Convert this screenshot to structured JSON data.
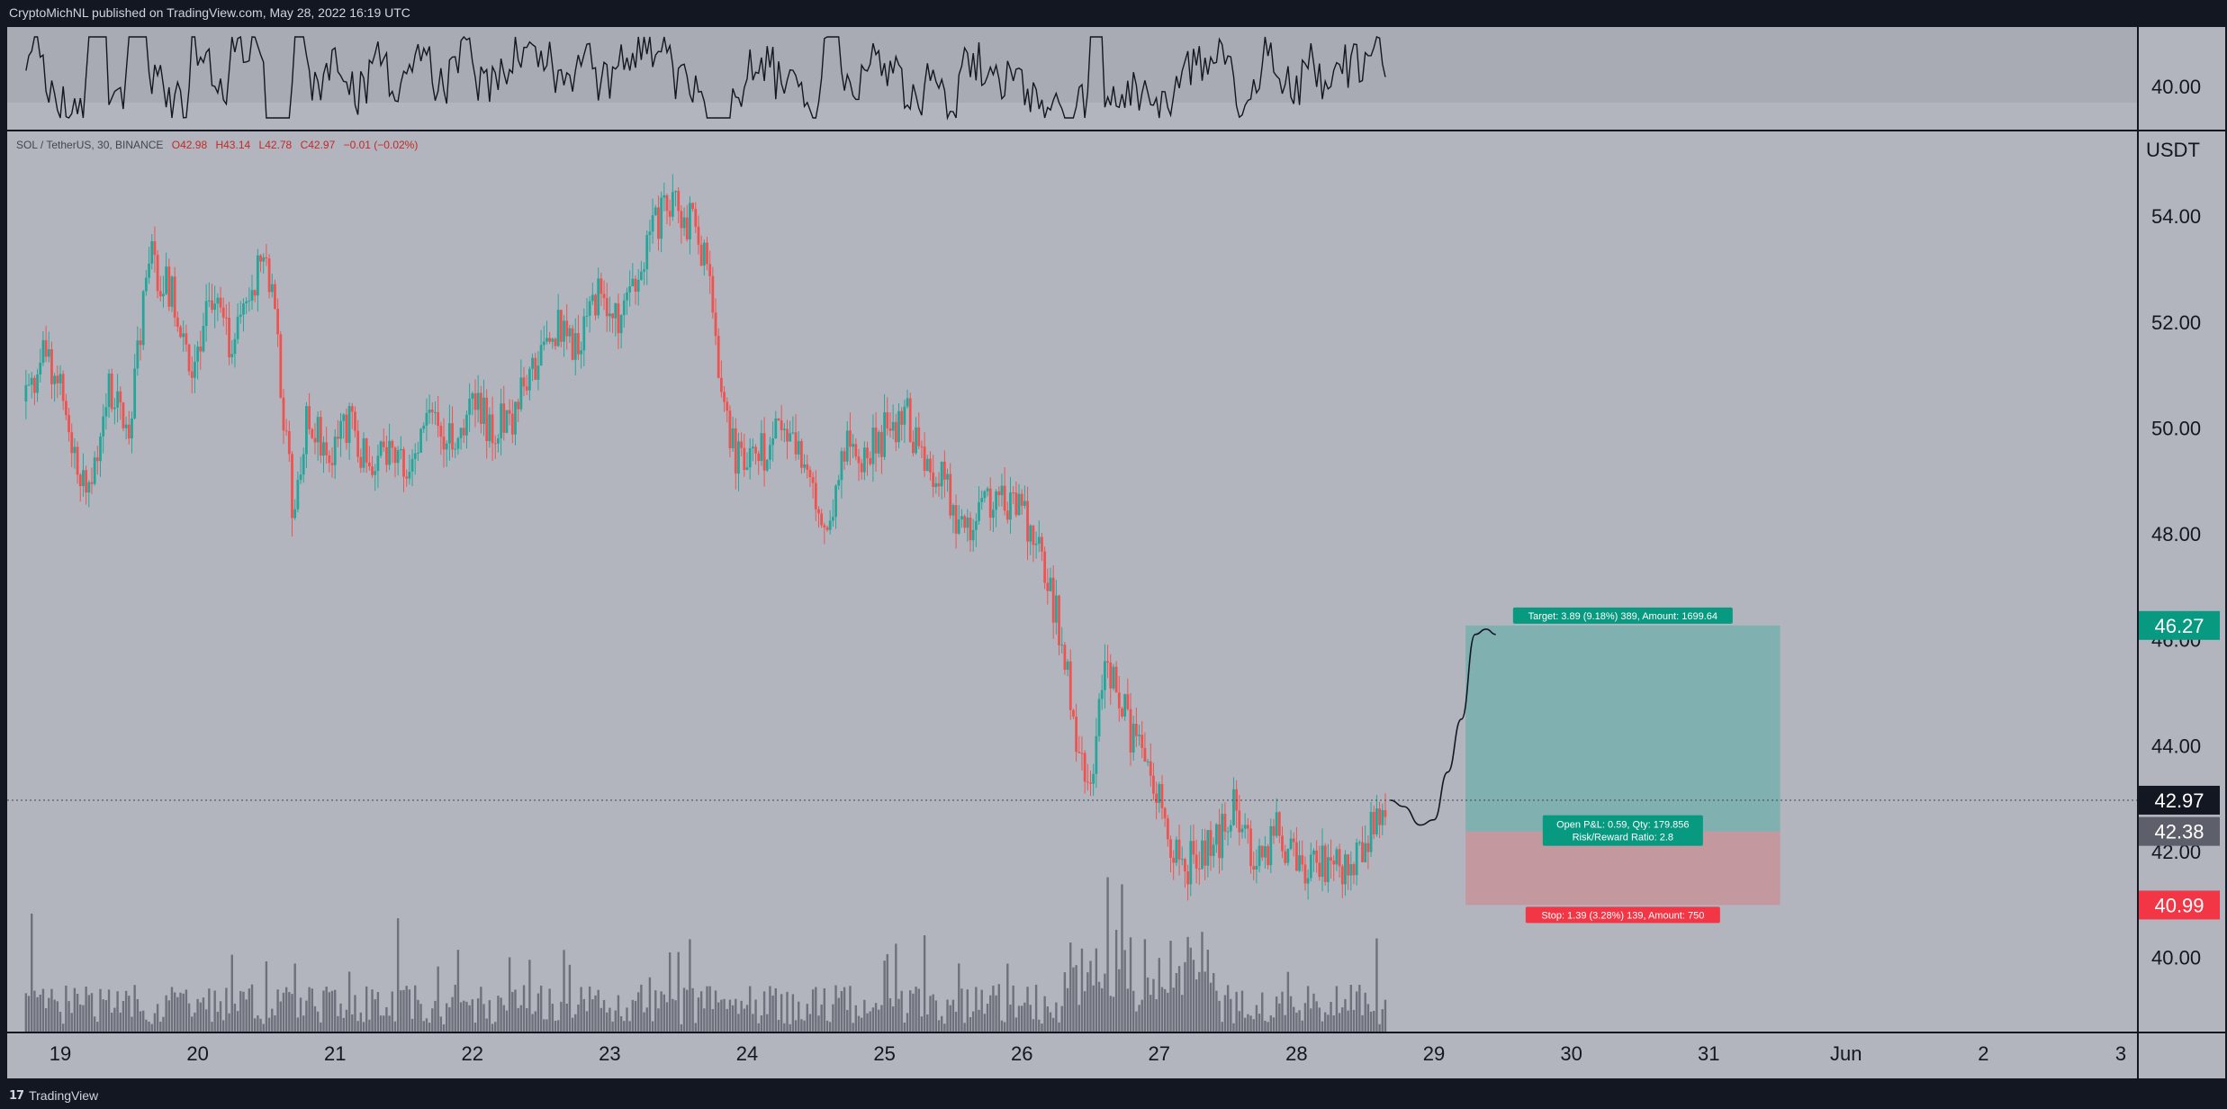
{
  "header": {
    "published": "CryptoMichNL published on TradingView.com, May 28, 2022 16:19 UTC"
  },
  "footer": {
    "logo_mark": "17",
    "logo_text": "TradingView"
  },
  "colors": {
    "background": "#b2b5be",
    "frame": "#131722",
    "up": "#26a69a",
    "down": "#ef5350",
    "target_zone": "#26a69a",
    "stop_zone": "#ef5350",
    "target_label": "#089981",
    "stop_label": "#f23645"
  },
  "chart_data": {
    "type": "candlestick",
    "symbol_line": "SOL / TetherUS, 30, BINANCE",
    "ohlc": {
      "o": "O42.98",
      "h": "H43.14",
      "l": "L42.78",
      "c": "C42.97",
      "chg": "−0.01 (−0.02%)"
    },
    "currency": "USDT",
    "y_ticks": [
      "40.00",
      "42.00",
      "44.00",
      "46.00",
      "48.00",
      "50.00",
      "52.00",
      "54.00"
    ],
    "ylim": [
      38.6,
      55.6
    ],
    "x_ticks": [
      "19",
      "20",
      "21",
      "22",
      "23",
      "24",
      "25",
      "26",
      "27",
      "28",
      "29",
      "30",
      "31",
      "Jun",
      "2",
      "3"
    ],
    "indicator_label": "40.00",
    "last_price": "42.97",
    "entry_price": "42.38",
    "target_price": "46.27",
    "stop_price": "40.99",
    "target_text": "Target: 3.89 (9.18%) 389, Amount: 1699.64",
    "stop_text": "Stop: 1.39 (3.28%) 139, Amount: 750",
    "pnl_text": "Open P&L: 0.59, Qty: 179.856",
    "rr_text": "Risk/Reward Ratio: 2.8",
    "price_path": [
      [
        18.75,
        50.5
      ],
      [
        18.9,
        51.5
      ],
      [
        19.05,
        50.2
      ],
      [
        19.2,
        48.6
      ],
      [
        19.35,
        50.8
      ],
      [
        19.5,
        50.0
      ],
      [
        19.65,
        53.2
      ],
      [
        19.8,
        52.6
      ],
      [
        19.95,
        51.2
      ],
      [
        20.1,
        52.4
      ],
      [
        20.25,
        51.5
      ],
      [
        20.4,
        52.8
      ],
      [
        20.5,
        53.4
      ],
      [
        20.6,
        51.0
      ],
      [
        20.7,
        48.2
      ],
      [
        20.8,
        50.2
      ],
      [
        20.95,
        49.6
      ],
      [
        21.1,
        50.1
      ],
      [
        21.25,
        49.2
      ],
      [
        21.4,
        49.8
      ],
      [
        21.55,
        49.3
      ],
      [
        21.7,
        50.3
      ],
      [
        21.85,
        49.7
      ],
      [
        22.0,
        50.4
      ],
      [
        22.15,
        50.0
      ],
      [
        22.3,
        50.2
      ],
      [
        22.45,
        51.2
      ],
      [
        22.6,
        51.9
      ],
      [
        22.75,
        51.6
      ],
      [
        22.9,
        52.5
      ],
      [
        23.05,
        52.0
      ],
      [
        23.2,
        52.6
      ],
      [
        23.3,
        53.6
      ],
      [
        23.45,
        54.4
      ],
      [
        23.6,
        53.8
      ],
      [
        23.7,
        53.2
      ],
      [
        23.8,
        51.0
      ],
      [
        23.9,
        49.6
      ],
      [
        24.0,
        49.2
      ],
      [
        24.2,
        49.8
      ],
      [
        24.4,
        49.5
      ],
      [
        24.55,
        47.8
      ],
      [
        24.7,
        49.6
      ],
      [
        24.85,
        49.4
      ],
      [
        25.0,
        49.9
      ],
      [
        25.15,
        50.3
      ],
      [
        25.3,
        49.2
      ],
      [
        25.45,
        48.9
      ],
      [
        25.55,
        48.0
      ],
      [
        25.7,
        48.5
      ],
      [
        25.85,
        48.7
      ],
      [
        26.0,
        48.4
      ],
      [
        26.15,
        47.6
      ],
      [
        26.3,
        45.9
      ],
      [
        26.4,
        44.2
      ],
      [
        26.5,
        43.2
      ],
      [
        26.6,
        45.8
      ],
      [
        26.7,
        45.0
      ],
      [
        26.8,
        44.2
      ],
      [
        26.95,
        43.5
      ],
      [
        27.05,
        42.3
      ],
      [
        27.15,
        41.7
      ],
      [
        27.3,
        41.9
      ],
      [
        27.45,
        42.3
      ],
      [
        27.55,
        43.0
      ],
      [
        27.65,
        42.2
      ],
      [
        27.75,
        41.6
      ],
      [
        27.85,
        42.4
      ],
      [
        27.95,
        41.9
      ],
      [
        28.05,
        41.5
      ],
      [
        28.15,
        41.9
      ],
      [
        28.25,
        41.6
      ],
      [
        28.35,
        41.8
      ],
      [
        28.45,
        42.0
      ],
      [
        28.55,
        42.4
      ],
      [
        28.65,
        42.97
      ]
    ],
    "projection_path": [
      [
        28.68,
        42.97
      ],
      [
        28.78,
        42.85
      ],
      [
        28.9,
        42.5
      ],
      [
        29.0,
        42.6
      ],
      [
        29.1,
        43.5
      ],
      [
        29.2,
        44.5
      ],
      [
        29.3,
        46.1
      ],
      [
        29.38,
        46.2
      ],
      [
        29.45,
        46.1
      ]
    ],
    "position": {
      "x_start": 29.23,
      "x_end": 31.52
    }
  }
}
